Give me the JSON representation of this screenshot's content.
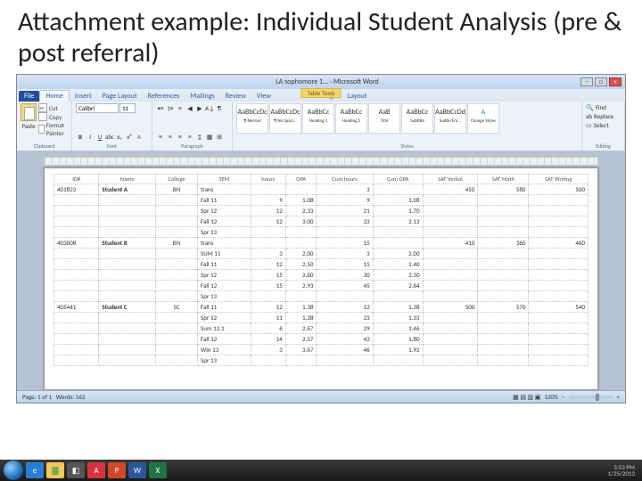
{
  "slide": {
    "title": "Attachment example: Individual Student Analysis (pre & post referral)"
  },
  "window": {
    "doc_title": "LA sophomore 1... · Microsoft Word",
    "context_tab": "Table Tools"
  },
  "tabs": {
    "file": "File",
    "items": [
      "Home",
      "Insert",
      "Page Layout",
      "References",
      "Mailings",
      "Review",
      "View",
      "Design",
      "Layout"
    ],
    "active": "Home"
  },
  "ribbon": {
    "clipboard": {
      "label": "Clipboard",
      "paste": "Paste",
      "cut": "Cut",
      "copy": "Copy",
      "fp": "Format Painter"
    },
    "font": {
      "label": "Font",
      "name": "Calibri",
      "size": "11"
    },
    "paragraph": {
      "label": "Paragraph"
    },
    "styles": {
      "label": "Styles",
      "items": [
        {
          "prev": "AaBbCcDc",
          "name": "¶ Normal"
        },
        {
          "prev": "AaBbCcDc",
          "name": "¶ No Spaci..."
        },
        {
          "prev": "AaBbCc",
          "name": "Heading 1"
        },
        {
          "prev": "AaBbCc",
          "name": "Heading 2"
        },
        {
          "prev": "AaB",
          "name": "Title"
        },
        {
          "prev": "AaBbCc",
          "name": "Subtitle"
        },
        {
          "prev": "AaBbCcDd",
          "name": "Subtle Em..."
        }
      ],
      "change": "Change Styles"
    },
    "editing": {
      "label": "Editing",
      "find": "Find",
      "replace": "Replace",
      "select": "Select"
    }
  },
  "table": {
    "headers": [
      "ID#",
      "Name",
      "College",
      "SEM",
      "hours",
      "GPA",
      "Cum hours",
      "Cum GPA",
      "SAT Verbal",
      "SAT Math",
      "SAT Writing"
    ],
    "rows": [
      {
        "id": "401823",
        "name": "Student A",
        "college": "BN",
        "sem": "trans",
        "h": "",
        "gpa": "",
        "ch": "3",
        "cgpa": "",
        "v": "450",
        "m": "580",
        "w": "500"
      },
      {
        "sem": "Fall 11",
        "h": "9",
        "gpa": "1.08",
        "ch": "9",
        "cgpa": "1.08"
      },
      {
        "sem": "Spr 12",
        "h": "12",
        "gpa": "2.33",
        "ch": "21",
        "cgpa": "1.70"
      },
      {
        "sem": "Fall 12",
        "h": "12",
        "gpa": "3.00",
        "ch": "33",
        "cgpa": "2.13"
      },
      {
        "sem": "Spr 13",
        "h": "",
        "gpa": "",
        "ch": "",
        "cgpa": ""
      },
      {
        "id": "403008",
        "name": "Student B",
        "college": "BN",
        "sem": "trans",
        "h": "",
        "gpa": "",
        "ch": "15",
        "cgpa": "",
        "v": "410",
        "m": "360",
        "w": "460"
      },
      {
        "sem": "SUM 11",
        "h": "3",
        "gpa": "2.00",
        "ch": "3",
        "cgpa": "2.00"
      },
      {
        "sem": "Fall 11",
        "h": "12",
        "gpa": "2.50",
        "ch": "15",
        "cgpa": "2.40"
      },
      {
        "sem": "Spr 12",
        "h": "15",
        "gpa": "2.60",
        "ch": "30",
        "cgpa": "2.50"
      },
      {
        "sem": "Fall 12",
        "h": "15",
        "gpa": "2.93",
        "ch": "45",
        "cgpa": "2.64"
      },
      {
        "sem": "Spr 13",
        "h": "",
        "gpa": "",
        "ch": "",
        "cgpa": ""
      },
      {
        "id": "405441",
        "name": "Student C",
        "college": "SC",
        "sem": "Fall 11",
        "h": "12",
        "gpa": "1.38",
        "ch": "12",
        "cgpa": "1.38",
        "v": "500",
        "m": "570",
        "w": "540"
      },
      {
        "sem": "Spr 12",
        "h": "11",
        "gpa": "1.28",
        "ch": "23",
        "cgpa": "1.33"
      },
      {
        "sem": "Sum 12.1",
        "h": "6",
        "gpa": "2.67",
        "ch": "29",
        "cgpa": "1.46"
      },
      {
        "sem": "Fall 12",
        "h": "14",
        "gpa": "2.57",
        "ch": "43",
        "cgpa": "1.80"
      },
      {
        "sem": "Win 13",
        "h": "3",
        "gpa": "3.67",
        "ch": "46",
        "cgpa": "1.92"
      },
      {
        "sem": "Spr 13",
        "h": "",
        "gpa": "",
        "ch": "",
        "cgpa": ""
      }
    ]
  },
  "status": {
    "page": "Page: 1 of 1",
    "words": "Words: 163",
    "zoom": "120%"
  },
  "tray": {
    "time": "3:53 PM",
    "date": "1/25/2013"
  }
}
